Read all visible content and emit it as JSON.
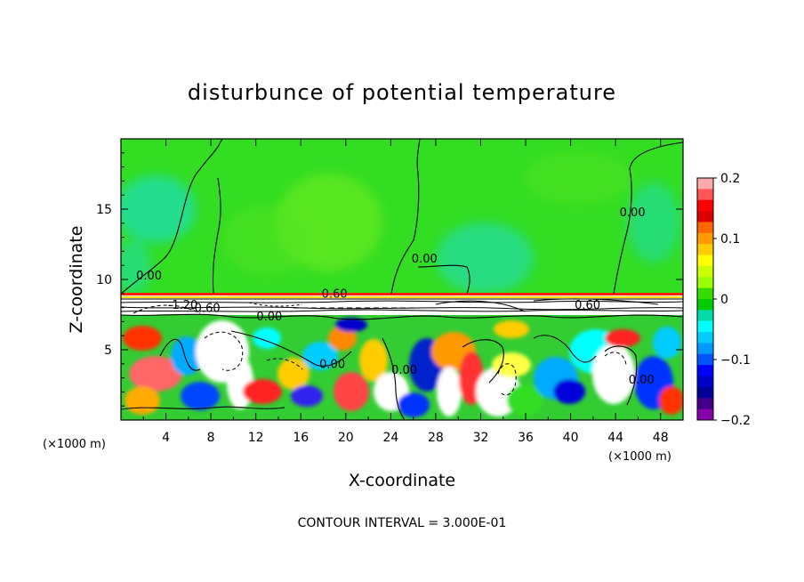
{
  "chart_data": {
    "type": "heatmap",
    "title": "disturbunce of potential temperature",
    "xlabel": "X-coordinate",
    "ylabel": "Z-coordinate",
    "x_unit_left": "(×1000 m)",
    "x_unit_right": "(×1000 m)",
    "xlim": [
      0,
      50
    ],
    "ylim": [
      0,
      20
    ],
    "x_ticks": [
      4,
      8,
      12,
      16,
      20,
      24,
      28,
      32,
      36,
      40,
      44,
      48
    ],
    "y_ticks": [
      5,
      10,
      15
    ],
    "colorbar": {
      "range": [
        -0.2,
        0.2
      ],
      "tick_values": [
        0.2,
        0.1,
        0,
        -0.1,
        -0.2
      ],
      "tick_labels": [
        "0.2",
        "0.1",
        "0",
        "−0.1",
        "−0.2"
      ],
      "colors": [
        "#ffaaaa",
        "#ff5555",
        "#ff0000",
        "#dd0000",
        "#ff6600",
        "#ff9900",
        "#ffcc00",
        "#ffff00",
        "#ccff00",
        "#99ff00",
        "#33dd00",
        "#00cc00",
        "#00ddaa",
        "#00ffff",
        "#00ccff",
        "#0099ff",
        "#0055ff",
        "#0000ff",
        "#0000cc",
        "#000099",
        "#440088",
        "#8800aa"
      ]
    },
    "contour_interval": "CONTOUR INTERVAL = 3.000E-01",
    "contour_labels": [
      {
        "text": "0.00",
        "x": 2.5,
        "z": 10.0
      },
      {
        "text": "0.00",
        "x": 45.5,
        "z": 14.5
      },
      {
        "text": "0.00",
        "x": 27.0,
        "z": 11.2
      },
      {
        "text": "0.60",
        "x": 19.0,
        "z": 8.7
      },
      {
        "text": "-1.20",
        "x": 5.5,
        "z": 7.9
      },
      {
        "text": "-0.60",
        "x": 7.5,
        "z": 7.7
      },
      {
        "text": "0.00",
        "x": 13.2,
        "z": 7.1
      },
      {
        "text": "0.60",
        "x": 41.5,
        "z": 7.9
      },
      {
        "text": "0.00",
        "x": 18.8,
        "z": 3.7
      },
      {
        "text": "0.00",
        "x": 25.2,
        "z": 3.3
      },
      {
        "text": "0.00",
        "x": 46.3,
        "z": 2.6
      }
    ]
  }
}
